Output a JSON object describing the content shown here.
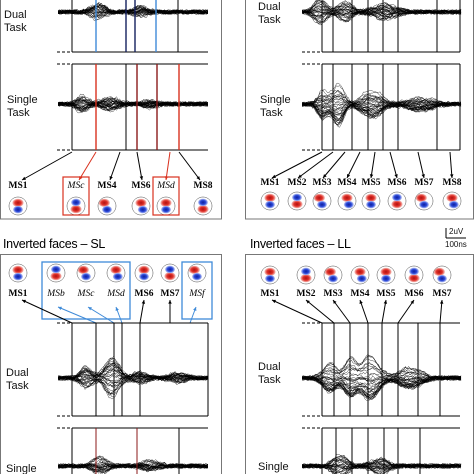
{
  "colors": {
    "blue": "#3e8ad8",
    "dark_blue": "#14205e",
    "red": "#d9311e",
    "dark_red": "#8b1a1a",
    "trace": "#000000",
    "topo_red": "#e0322a",
    "topo_blue": "#2948d8"
  },
  "scale_bar": {
    "amplitude": "2uV",
    "time": "100ns"
  },
  "panels": [
    {
      "id": "upright-sl",
      "title": "",
      "rows": [
        {
          "label_line1": "Dual",
          "label_line2": "Task",
          "label_box": "Dual Task"
        },
        {
          "label_line1": "Single",
          "label_line2": "Task",
          "label_box": "Single Task"
        }
      ],
      "maps": [
        {
          "label": "MS1",
          "italic": false,
          "box": ""
        },
        {
          "label": "MSc",
          "italic": true,
          "box": "red"
        },
        {
          "label": "MS4",
          "italic": false,
          "box": ""
        },
        {
          "label": "MS6",
          "italic": false,
          "box": ""
        },
        {
          "label": "MSd",
          "italic": true,
          "box": "red"
        },
        {
          "label": "MS8",
          "italic": false,
          "box": ""
        }
      ]
    },
    {
      "id": "upright-ll",
      "title": "",
      "rows": [
        {
          "label_line1": "Dual",
          "label_line2": "Task"
        },
        {
          "label_line1": "Single",
          "label_line2": "Task"
        }
      ],
      "maps": [
        {
          "label": "MS1",
          "italic": false,
          "box": ""
        },
        {
          "label": "MS2",
          "italic": false,
          "box": ""
        },
        {
          "label": "MS3",
          "italic": false,
          "box": ""
        },
        {
          "label": "MS4",
          "italic": false,
          "box": ""
        },
        {
          "label": "MS5",
          "italic": false,
          "box": ""
        },
        {
          "label": "MS6",
          "italic": false,
          "box": ""
        },
        {
          "label": "MS7",
          "italic": false,
          "box": ""
        },
        {
          "label": "MS8",
          "italic": false,
          "box": ""
        }
      ]
    },
    {
      "id": "inverted-sl",
      "title": "Inverted faces – SL",
      "rows": [
        {
          "label_line1": "Dual",
          "label_line2": "Task"
        },
        {
          "label_line1": "Single",
          "label_line2": ""
        }
      ],
      "maps": [
        {
          "label": "MS1",
          "italic": false,
          "box": ""
        },
        {
          "label": "MSb",
          "italic": true,
          "box": "blue"
        },
        {
          "label": "MSc",
          "italic": true,
          "box": "blue"
        },
        {
          "label": "MSd",
          "italic": true,
          "box": "blue"
        },
        {
          "label": "MS6",
          "italic": false,
          "box": ""
        },
        {
          "label": "MS7",
          "italic": false,
          "box": ""
        },
        {
          "label": "MSf",
          "italic": true,
          "box": "blue"
        }
      ]
    },
    {
      "id": "inverted-ll",
      "title": "Inverted faces – LL",
      "rows": [
        {
          "label_line1": "Dual",
          "label_line2": "Task"
        },
        {
          "label_line1": "Single",
          "label_line2": ""
        }
      ],
      "maps": [
        {
          "label": "MS1",
          "italic": false,
          "box": ""
        },
        {
          "label": "MS2",
          "italic": false,
          "box": ""
        },
        {
          "label": "MS3",
          "italic": false,
          "box": ""
        },
        {
          "label": "MS4",
          "italic": false,
          "box": ""
        },
        {
          "label": "MS5",
          "italic": false,
          "box": ""
        },
        {
          "label": "MS6",
          "italic": false,
          "box": ""
        },
        {
          "label": "MS7",
          "italic": false,
          "box": ""
        }
      ]
    }
  ]
}
